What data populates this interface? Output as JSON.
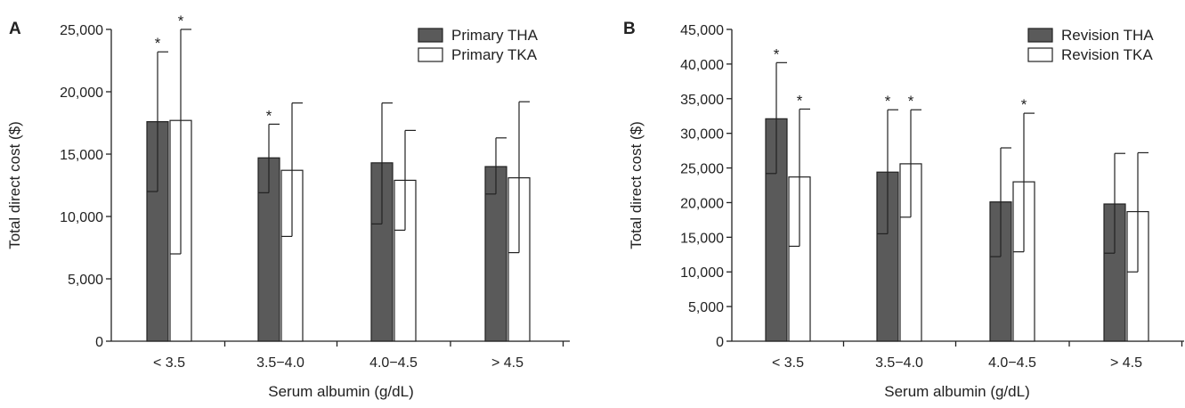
{
  "colors": {
    "series_filled": "#5a5a5a",
    "series_open": "#ffffff",
    "axis": "#222222"
  },
  "chart_data": [
    {
      "type": "bar",
      "panel_label": "A",
      "title": "",
      "xlabel": "Serum albumin (g/dL)",
      "ylabel": "Total direct cost ($)",
      "ylim": [
        0,
        25000
      ],
      "yticks": [
        0,
        5000,
        10000,
        15000,
        20000,
        25000
      ],
      "ytick_labels": [
        "0",
        "5,000",
        "10,000",
        "15,000",
        "20,000",
        "25,000"
      ],
      "categories": [
        "< 3.5",
        "3.5−4.0",
        "4.0−4.5",
        "> 4.5"
      ],
      "legend_position": "top-right",
      "series": [
        {
          "name": "Primary THA",
          "fill": "filled",
          "values": [
            17600,
            14700,
            14300,
            14000
          ],
          "error_low": [
            12000,
            11900,
            9400,
            11800
          ],
          "error_high": [
            23200,
            17400,
            19100,
            16300
          ],
          "significant": [
            true,
            true,
            false,
            false
          ]
        },
        {
          "name": "Primary TKA",
          "fill": "open",
          "values": [
            17700,
            13700,
            12900,
            13100
          ],
          "error_low": [
            7000,
            8400,
            8900,
            7100
          ],
          "error_high": [
            25000,
            19100,
            16900,
            19200
          ],
          "significant": [
            true,
            false,
            false,
            false
          ]
        }
      ],
      "significance_marker": "*",
      "grid": false
    },
    {
      "type": "bar",
      "panel_label": "B",
      "title": "",
      "xlabel": "Serum albumin (g/dL)",
      "ylabel": "Total direct cost ($)",
      "ylim": [
        0,
        45000
      ],
      "yticks": [
        0,
        5000,
        10000,
        15000,
        20000,
        25000,
        30000,
        35000,
        40000,
        45000
      ],
      "ytick_labels": [
        "0",
        "5,000",
        "10,000",
        "15,000",
        "20,000",
        "25,000",
        "30,000",
        "35,000",
        "40,000",
        "45,000"
      ],
      "categories": [
        "< 3.5",
        "3.5−4.0",
        "4.0−4.5",
        "> 4.5"
      ],
      "legend_position": "top-right",
      "series": [
        {
          "name": "Revision THA",
          "fill": "filled",
          "values": [
            32100,
            24400,
            20100,
            19800
          ],
          "error_low": [
            24200,
            15500,
            12200,
            12700
          ],
          "error_high": [
            40200,
            33400,
            27900,
            27100
          ],
          "significant": [
            true,
            true,
            false,
            false
          ]
        },
        {
          "name": "Revision TKA",
          "fill": "open",
          "values": [
            23700,
            25600,
            23000,
            18700
          ],
          "error_low": [
            13700,
            17900,
            12900,
            10000
          ],
          "error_high": [
            33500,
            33400,
            32900,
            27200
          ],
          "significant": [
            true,
            true,
            true,
            false
          ]
        }
      ],
      "significance_marker": "*",
      "grid": false
    }
  ]
}
